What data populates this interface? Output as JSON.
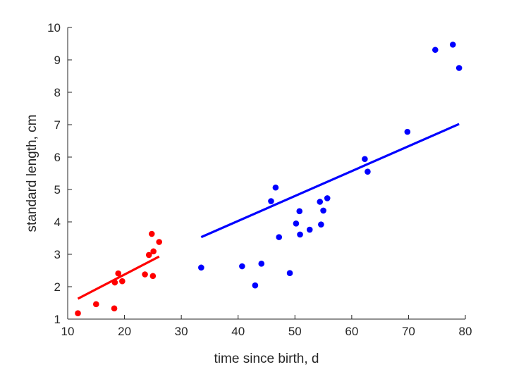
{
  "chart_data": {
    "type": "scatter",
    "xlabel": "time since birth, d",
    "ylabel": "standard length, cm",
    "xlim": [
      10,
      80
    ],
    "ylim": [
      1,
      10
    ],
    "xticks": [
      "10",
      "20",
      "30",
      "40",
      "50",
      "60",
      "70",
      "80"
    ],
    "yticks": [
      "1",
      "2",
      "3",
      "4",
      "5",
      "6",
      "7",
      "8",
      "9",
      "10"
    ],
    "grid": false,
    "legend": "none",
    "series": [
      {
        "color": "#ff0000",
        "points": [
          {
            "x": 11.8,
            "y": 1.18
          },
          {
            "x": 15.0,
            "y": 1.46
          },
          {
            "x": 18.2,
            "y": 1.33
          },
          {
            "x": 18.3,
            "y": 2.13
          },
          {
            "x": 18.9,
            "y": 2.41
          },
          {
            "x": 19.6,
            "y": 2.17
          },
          {
            "x": 23.6,
            "y": 2.38
          },
          {
            "x": 24.3,
            "y": 2.98
          },
          {
            "x": 24.8,
            "y": 3.63
          },
          {
            "x": 25.1,
            "y": 3.09
          },
          {
            "x": 25.0,
            "y": 2.33
          },
          {
            "x": 26.1,
            "y": 3.38
          }
        ],
        "fit": {
          "x": [
            11.8,
            26.1
          ],
          "y": [
            1.63,
            2.93
          ]
        }
      },
      {
        "color": "#0000ff",
        "points": [
          {
            "x": 33.5,
            "y": 2.59
          },
          {
            "x": 40.7,
            "y": 2.63
          },
          {
            "x": 43.0,
            "y": 2.04
          },
          {
            "x": 44.1,
            "y": 2.71
          },
          {
            "x": 45.8,
            "y": 4.64
          },
          {
            "x": 46.6,
            "y": 5.06
          },
          {
            "x": 47.2,
            "y": 3.53
          },
          {
            "x": 49.1,
            "y": 2.42
          },
          {
            "x": 50.2,
            "y": 3.95
          },
          {
            "x": 50.8,
            "y": 4.33
          },
          {
            "x": 50.9,
            "y": 3.61
          },
          {
            "x": 52.6,
            "y": 3.76
          },
          {
            "x": 54.4,
            "y": 4.62
          },
          {
            "x": 54.6,
            "y": 3.92
          },
          {
            "x": 55.0,
            "y": 4.35
          },
          {
            "x": 55.7,
            "y": 4.73
          },
          {
            "x": 62.3,
            "y": 5.94
          },
          {
            "x": 62.8,
            "y": 5.55
          },
          {
            "x": 69.8,
            "y": 6.78
          },
          {
            "x": 74.7,
            "y": 9.31
          },
          {
            "x": 77.8,
            "y": 9.47
          },
          {
            "x": 78.9,
            "y": 8.75
          }
        ],
        "fit": {
          "x": [
            33.5,
            78.9
          ],
          "y": [
            3.53,
            7.02
          ]
        }
      }
    ]
  }
}
